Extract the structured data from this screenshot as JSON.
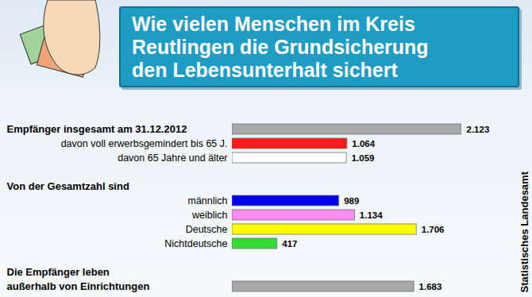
{
  "chart_data": {
    "type": "bar",
    "orientation": "horizontal",
    "data_labels": true,
    "tick_labels": false,
    "title": "Wie vielen Menschen im Kreis\nReutlingen die Grundsicherung\nden Lebensunterhalt sichert",
    "source": "Statistisches Landesamt",
    "groups": [
      {
        "heading": "Empfänger insgesamt am 31.12.2012",
        "heading_value": 2123,
        "heading_value_label": "2.123",
        "heading_color": "#a8a8a8",
        "categories": [
          "davon voll erwerbsgemindert bis 65 J.",
          "davon 65 Jahre und älter"
        ],
        "values": [
          1064,
          1059
        ],
        "value_labels": [
          "1.064",
          "1.059"
        ],
        "colors": [
          "#ff1a1a",
          "#ffffff"
        ]
      },
      {
        "heading": "Von der Gesamtzahl sind",
        "categories": [
          "männlich",
          "weiblich",
          "Deutsche",
          "Nichtdeutsche"
        ],
        "values": [
          989,
          1134,
          1706,
          417
        ],
        "value_labels": [
          "989",
          "1.134",
          "1.706",
          "417"
        ],
        "colors": [
          "#0000ee",
          "#ff8cf0",
          "#ffff00",
          "#33dd33"
        ]
      },
      {
        "heading": "Die Empfänger leben\naußerhalb von Einrichtungen",
        "heading_value": 1683,
        "heading_value_label": "1.683",
        "heading_color": "#a8a8a8",
        "categories": [],
        "values": [],
        "value_labels": [],
        "colors": []
      }
    ]
  }
}
